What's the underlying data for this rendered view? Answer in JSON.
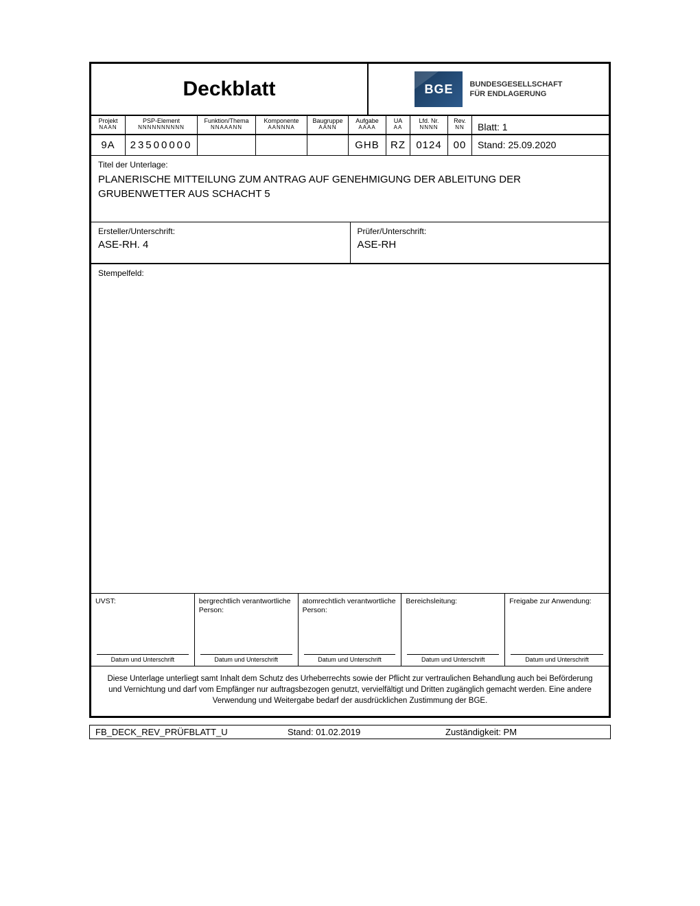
{
  "title": "Deckblatt",
  "logo": {
    "abbr": "BGE",
    "line1": "BUNDESGESELLSCHAFT",
    "line2": "FÜR ENDLAGERUNG"
  },
  "headers": {
    "projekt": {
      "label": "Projekt",
      "format": "NAAN",
      "value": "9A"
    },
    "psp": {
      "label": "PSP-Element",
      "format": "NNNNNNNNNN",
      "value": "23500000"
    },
    "funktion": {
      "label": "Funktion/Thema",
      "format": "NNAAANN",
      "value": ""
    },
    "komponente": {
      "label": "Komponente",
      "format": "AANNNA",
      "value": ""
    },
    "baugruppe": {
      "label": "Baugruppe",
      "format": "AANN",
      "value": ""
    },
    "aufgabe": {
      "label": "Aufgabe",
      "format": "AAAA",
      "value": "GHB"
    },
    "ua": {
      "label": "UA",
      "format": "AA",
      "value": "RZ"
    },
    "lfdnr": {
      "label": "Lfd. Nr.",
      "format": "NNNN",
      "value": "0124"
    },
    "rev": {
      "label": "Rev.",
      "format": "NN",
      "value": "00"
    }
  },
  "blatt": "Blatt: 1",
  "stand_top": "Stand: 25.09.2020",
  "titel": {
    "label": "Titel der Unterlage:",
    "text": "PLANERISCHE MITTEILUNG ZUM ANTRAG AUF GENEHMIGUNG DER ABLEITUNG DER GRUBENWETTER AUS SCHACHT 5"
  },
  "ersteller": {
    "label": "Ersteller/Unterschrift:",
    "value": "ASE-RH. 4"
  },
  "pruefer": {
    "label": "Prüfer/Unterschrift:",
    "value": "ASE-RH"
  },
  "stempel_label": "Stempelfeld:",
  "approvals": {
    "uvst": "UVST:",
    "bergrecht": "bergrechtlich verantwortliche Person:",
    "atomrecht": "atomrechtlich verantwortliche Person:",
    "bereich": "Bereichsleitung:",
    "freigabe": "Freigabe zur Anwendung:",
    "datum": "Datum und Unterschrift"
  },
  "disclaimer": "Diese Unterlage unterliegt samt Inhalt dem Schutz des Urheberrechts sowie der Pflicht zur vertraulichen Behandlung auch bei Beförderung und Vernichtung und darf vom Empfänger nur auftragsbezogen genutzt, vervielfältigt und Dritten zugänglich gemacht werden. Eine andere Verwendung und Weitergabe bedarf der ausdrücklichen Zustimmung der BGE.",
  "footer": {
    "code": "FB_DECK_REV_PRÜFBLATT_U",
    "stand": "Stand: 01.02.2019",
    "zust": "Zuständigkeit: PM"
  }
}
